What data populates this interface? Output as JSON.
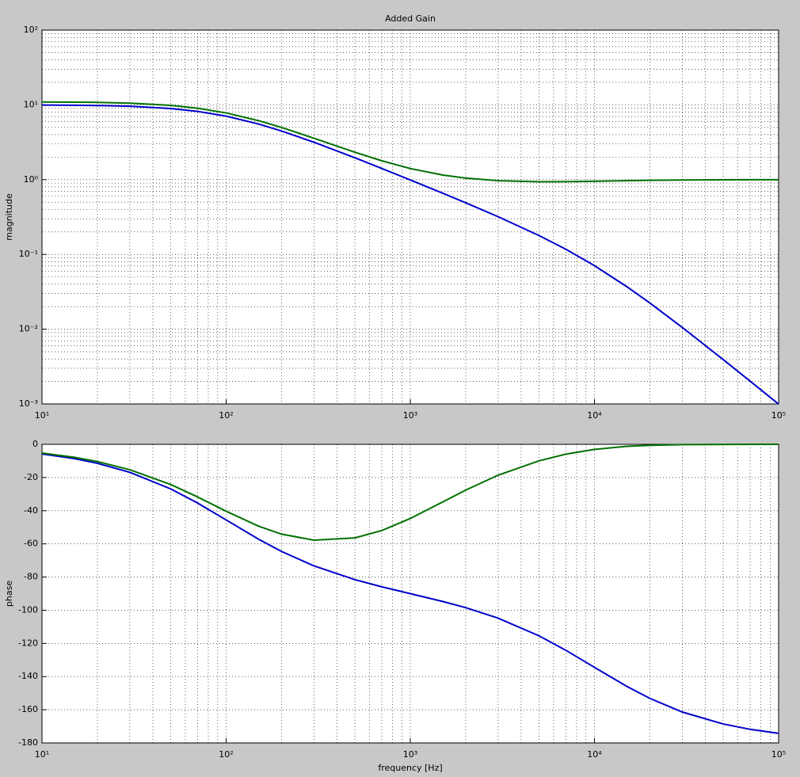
{
  "chart_data": [
    {
      "type": "line",
      "title": "Added Gain",
      "y_label": "magnitude",
      "x": [
        10,
        15,
        20,
        30,
        50,
        70,
        100,
        150,
        200,
        300,
        500,
        700,
        1000,
        1500,
        2000,
        3000,
        5000,
        7000,
        10000,
        15000,
        20000,
        30000,
        50000,
        70000,
        100000
      ],
      "series": [
        {
          "color": "#0000cc",
          "values": [
            9.95,
            9.889,
            9.806,
            9.578,
            8.944,
            8.192,
            7.071,
            5.546,
            4.471,
            3.161,
            1.959,
            1.411,
            0.99,
            0.6578,
            0.4897,
            0.3191,
            0.1789,
            0.117,
            0.0707,
            0.03698,
            0.02236,
            0.01054,
            0.003922,
            0.00202,
            0.000995
          ]
        },
        {
          "color": "#007000",
          "values": [
            10.946,
            10.879,
            10.788,
            10.54,
            9.847,
            9.026,
            7.804,
            6.147,
            4.983,
            3.579,
            2.326,
            1.787,
            1.407,
            1.151,
            1.047,
            0.9689,
            0.9372,
            0.9393,
            0.9518,
            0.9696,
            0.9801,
            0.99,
            0.9962,
            0.998,
            0.999
          ]
        }
      ],
      "xscale": "log",
      "yscale": "log",
      "grid": true,
      "minor_grid": true,
      "xlim": [
        10,
        100000
      ],
      "xticks": [
        {
          "value": 10,
          "label": "10¹"
        },
        {
          "value": 100,
          "label": "10²"
        },
        {
          "value": 1000,
          "label": "10³"
        },
        {
          "value": 10000,
          "label": "10⁴"
        },
        {
          "value": 100000,
          "label": "10⁵"
        }
      ],
      "ylim": [
        0.001,
        100
      ],
      "yticks": [
        {
          "value": 0.001,
          "label": "10⁻³"
        },
        {
          "value": 0.01,
          "label": "10⁻²"
        },
        {
          "value": 0.1,
          "label": "10⁻¹"
        },
        {
          "value": 1,
          "label": "10⁰"
        },
        {
          "value": 10,
          "label": "10¹"
        },
        {
          "value": 100,
          "label": "10²"
        }
      ]
    },
    {
      "type": "line",
      "y_label": "phase",
      "x_label": "frequency [Hz]",
      "x": [
        10,
        15,
        20,
        30,
        50,
        70,
        100,
        150,
        200,
        300,
        500,
        700,
        1000,
        1500,
        2000,
        3000,
        5000,
        7000,
        10000,
        15000,
        20000,
        30000,
        50000,
        70000,
        100000
      ],
      "series": [
        {
          "color": "#0000cc",
          "values": [
            -5.77,
            -8.62,
            -11.42,
            -16.87,
            -26.86,
            -35.39,
            -45.57,
            -57.17,
            -64.58,
            -73.29,
            -81.55,
            -85.87,
            -90.0,
            -94.72,
            -98.45,
            -104.79,
            -115.42,
            -124.17,
            -134.43,
            -145.93,
            -153.14,
            -161.38,
            -168.58,
            -171.79,
            -174.23
          ]
        },
        {
          "color": "#007000",
          "values": [
            -5.24,
            -7.83,
            -10.37,
            -15.3,
            -24.22,
            -31.72,
            -40.32,
            -49.32,
            -54.14,
            -57.77,
            -56.39,
            -51.95,
            -44.71,
            -34.72,
            -27.56,
            -18.57,
            -9.92,
            -5.92,
            -3.04,
            -1.22,
            -0.59,
            -0.195,
            -0.045,
            -0.017,
            -0.006
          ]
        }
      ],
      "xscale": "log",
      "grid": true,
      "minor_grid": true,
      "xlim": [
        10,
        100000
      ],
      "xticks": [
        {
          "value": 10,
          "label": "10¹"
        },
        {
          "value": 100,
          "label": "10²"
        },
        {
          "value": 1000,
          "label": "10³"
        },
        {
          "value": 10000,
          "label": "10⁴"
        },
        {
          "value": 100000,
          "label": "10⁵"
        }
      ],
      "ylim": [
        -180,
        0
      ],
      "yticks": [
        -180,
        -160,
        -140,
        -120,
        -100,
        -80,
        -60,
        -40,
        -20,
        0
      ]
    }
  ]
}
